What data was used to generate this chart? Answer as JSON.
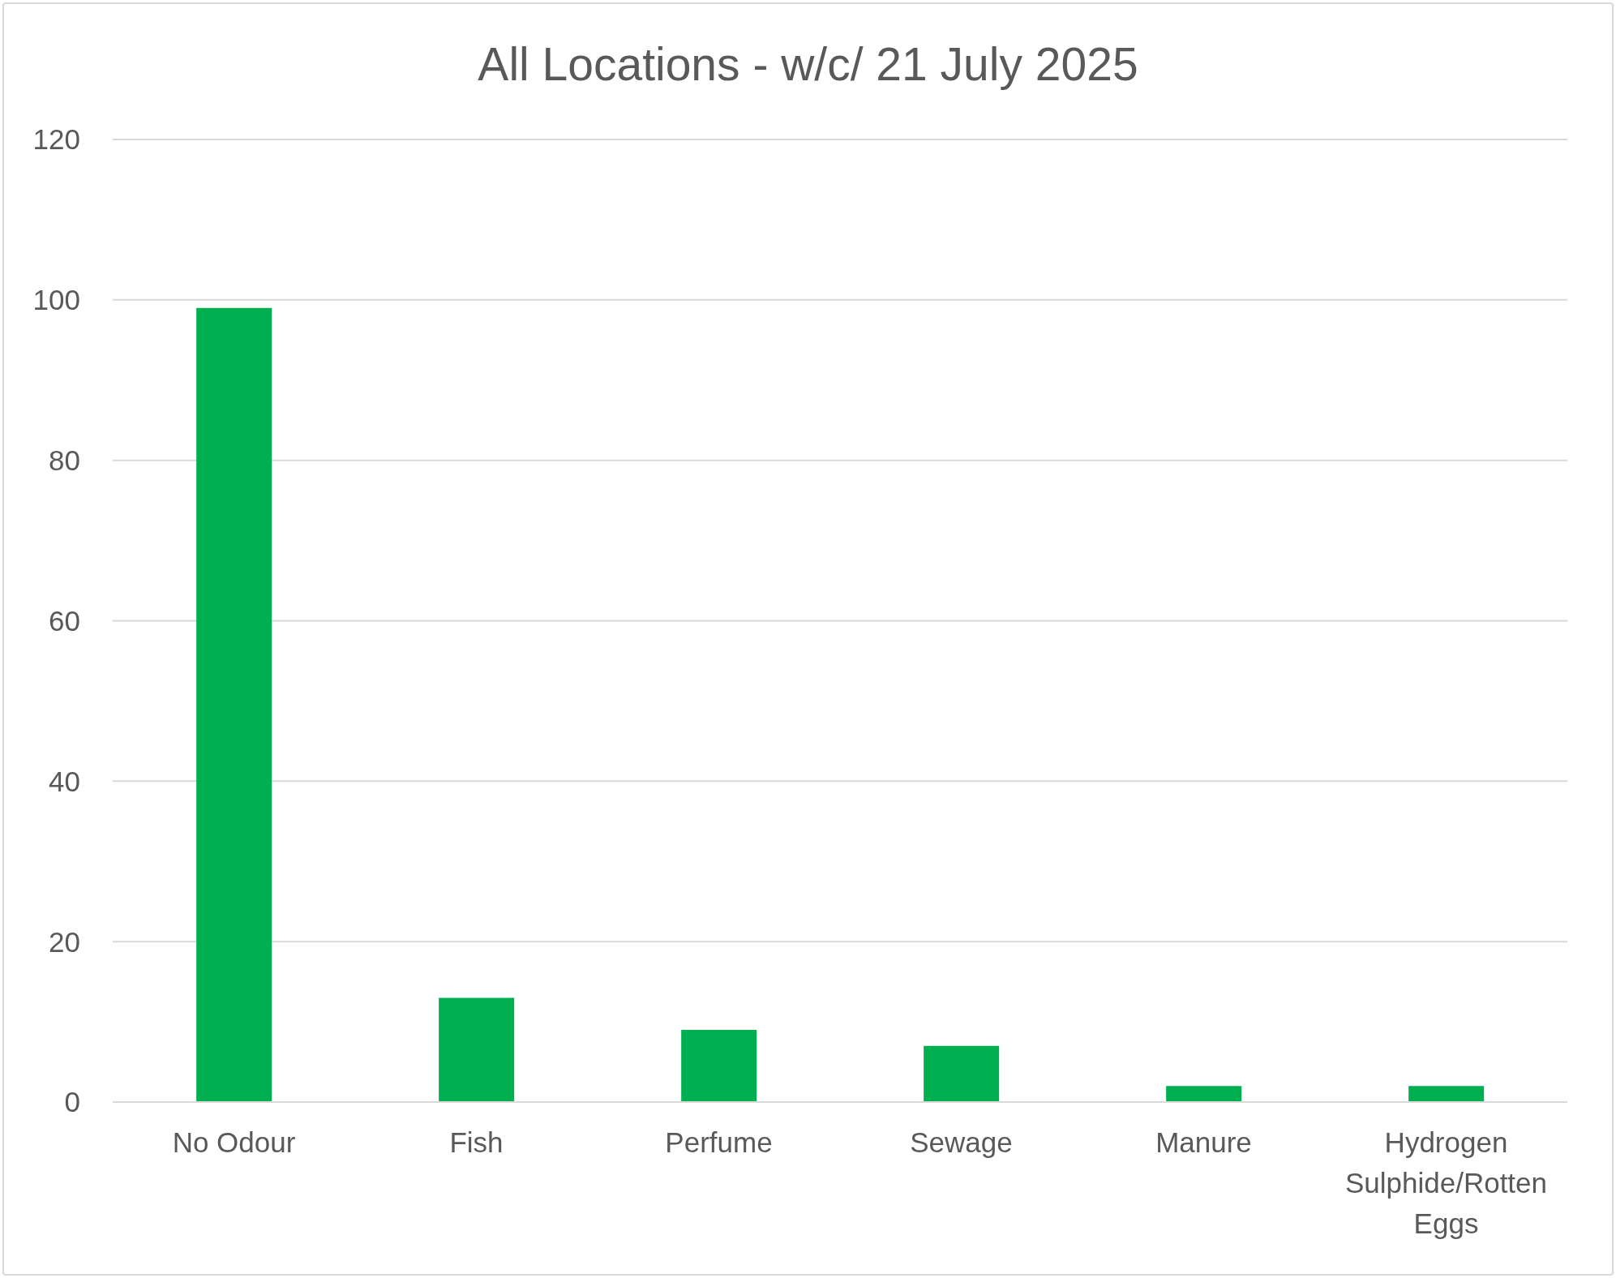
{
  "chart_data": {
    "type": "bar",
    "title": "All Locations - w/c/ 21 July 2025",
    "categories": [
      "No Odour",
      "Fish",
      "Perfume",
      "Sewage",
      "Manure",
      "Hydrogen Sulphide/Rotten Eggs"
    ],
    "values": [
      99,
      13,
      9,
      7,
      2,
      2
    ],
    "color": "#00b050",
    "ylim": [
      0,
      120
    ],
    "yticks": [
      0,
      20,
      40,
      60,
      80,
      100,
      120
    ],
    "grid": "y"
  }
}
